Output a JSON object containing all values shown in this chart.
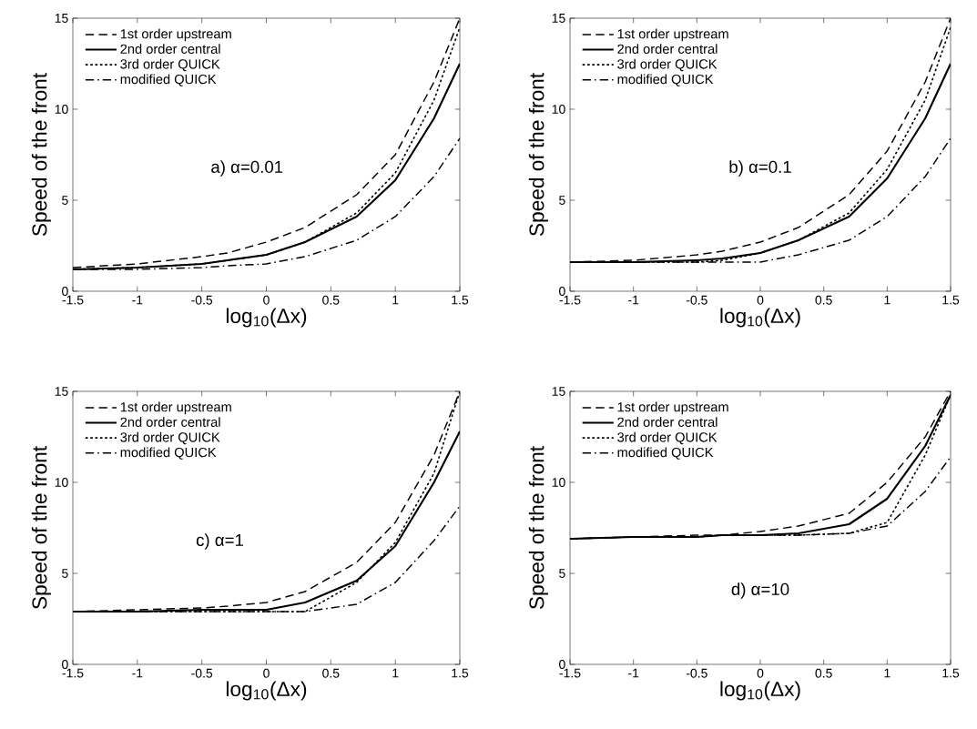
{
  "chart_data": [
    {
      "type": "line",
      "xlabel": "log$_{10}$(Δx)",
      "ylabel": "Speed of the front",
      "annotations": [
        "a) α=0.01"
      ],
      "xlim": [
        -1.5,
        1.5
      ],
      "ylim": [
        0,
        15
      ],
      "xticks": [
        -1.5,
        -1,
        -0.5,
        0,
        0.5,
        1,
        1.5
      ],
      "yticks": [
        0,
        5,
        10,
        15
      ],
      "legend": "top left",
      "x": [
        -1.5,
        -1,
        -0.5,
        -0.3,
        0,
        0.3,
        0.7,
        1,
        1.3,
        1.5
      ],
      "series": [
        {
          "name": "1st order upstream",
          "color": "#000000",
          "line_style": "dashed",
          "values": [
            1.3,
            1.5,
            1.9,
            2.1,
            2.7,
            3.5,
            5.3,
            7.5,
            11.5,
            15
          ]
        },
        {
          "name": "2nd order central",
          "color": "#000000",
          "line_style": "solid",
          "values": [
            1.2,
            1.3,
            1.5,
            1.7,
            2.0,
            2.7,
            4.1,
            6.1,
            9.5,
            12.5
          ]
        },
        {
          "name": "3rd order QUICK",
          "color": "#000000",
          "line_style": "dotted",
          "values": [
            1.2,
            1.3,
            1.5,
            1.7,
            2.0,
            2.7,
            4.3,
            6.5,
            10.5,
            14.5
          ]
        },
        {
          "name": "modified QUICK",
          "color": "#000000",
          "line_style": "dashdot",
          "values": [
            1.2,
            1.2,
            1.3,
            1.4,
            1.5,
            1.9,
            2.8,
            4.1,
            6.3,
            8.4
          ]
        }
      ]
    },
    {
      "type": "line",
      "xlabel": "log$_{10}$(Δx)",
      "ylabel": "Speed of the front",
      "annotations": [
        "b) α=0.1"
      ],
      "xlim": [
        -1.5,
        1.5
      ],
      "ylim": [
        0,
        15
      ],
      "xticks": [
        -1.5,
        -1,
        -0.5,
        0,
        0.5,
        1,
        1.5
      ],
      "yticks": [
        0,
        5,
        10,
        15
      ],
      "legend": "top left",
      "x": [
        -1.5,
        -1,
        -0.5,
        -0.3,
        0,
        0.3,
        0.7,
        1,
        1.3,
        1.5
      ],
      "series": [
        {
          "name": "1st order upstream",
          "color": "#000000",
          "line_style": "dashed",
          "values": [
            1.6,
            1.7,
            2.0,
            2.2,
            2.7,
            3.5,
            5.3,
            7.7,
            11.5,
            15
          ]
        },
        {
          "name": "2nd order central",
          "color": "#000000",
          "line_style": "solid",
          "values": [
            1.6,
            1.6,
            1.7,
            1.8,
            2.1,
            2.8,
            4.1,
            6.2,
            9.5,
            12.5
          ]
        },
        {
          "name": "3rd order QUICK",
          "color": "#000000",
          "line_style": "dotted",
          "values": [
            1.6,
            1.6,
            1.6,
            1.7,
            2.1,
            2.8,
            4.3,
            6.7,
            10.5,
            14.5
          ]
        },
        {
          "name": "modified QUICK",
          "color": "#000000",
          "line_style": "dashdot",
          "values": [
            1.6,
            1.6,
            1.6,
            1.6,
            1.6,
            2.0,
            2.8,
            4.1,
            6.3,
            8.4
          ]
        }
      ]
    },
    {
      "type": "line",
      "xlabel": "log$_{10}$(Δx)",
      "ylabel": "Speed of the front",
      "annotations": [
        "c) α=1"
      ],
      "xlim": [
        -1.5,
        1.5
      ],
      "ylim": [
        0,
        15
      ],
      "xticks": [
        -1.5,
        -1,
        -0.5,
        0,
        0.5,
        1,
        1.5
      ],
      "yticks": [
        0,
        5,
        10,
        15
      ],
      "legend": "top left",
      "x": [
        -1.5,
        -1,
        -0.5,
        -0.3,
        0,
        0.3,
        0.7,
        1,
        1.3,
        1.5
      ],
      "series": [
        {
          "name": "1st order upstream",
          "color": "#000000",
          "line_style": "dashed",
          "values": [
            2.9,
            3.0,
            3.1,
            3.2,
            3.4,
            4.0,
            5.6,
            7.8,
            11.5,
            15
          ]
        },
        {
          "name": "2nd order central",
          "color": "#000000",
          "line_style": "solid",
          "values": [
            2.9,
            2.9,
            3.0,
            3.0,
            3.0,
            3.4,
            4.6,
            6.5,
            10.0,
            12.8
          ]
        },
        {
          "name": "3rd order QUICK",
          "color": "#000000",
          "line_style": "dotted",
          "values": [
            2.9,
            2.9,
            2.9,
            2.9,
            2.9,
            2.9,
            4.5,
            6.7,
            10.5,
            15
          ]
        },
        {
          "name": "modified QUICK",
          "color": "#000000",
          "line_style": "dashdot",
          "values": [
            2.9,
            2.9,
            2.9,
            2.9,
            2.9,
            2.9,
            3.3,
            4.5,
            6.8,
            8.7
          ]
        }
      ]
    },
    {
      "type": "line",
      "xlabel": "log$_{10}$(Δx)",
      "ylabel": "Speed of the front",
      "annotations": [
        "d) α=10"
      ],
      "xlim": [
        -1.5,
        1.5
      ],
      "ylim": [
        0,
        15
      ],
      "xticks": [
        -1.5,
        -1,
        -0.5,
        0,
        0.5,
        1,
        1.5
      ],
      "yticks": [
        0,
        5,
        10,
        15
      ],
      "legend": "top left",
      "x": [
        -1.5,
        -1,
        -0.5,
        -0.3,
        0,
        0.3,
        0.7,
        1,
        1.3,
        1.5
      ],
      "series": [
        {
          "name": "1st order upstream",
          "color": "#000000",
          "line_style": "dashed",
          "values": [
            6.9,
            7.0,
            7.1,
            7.1,
            7.3,
            7.6,
            8.3,
            10.0,
            12.5,
            15
          ]
        },
        {
          "name": "2nd order central",
          "color": "#000000",
          "line_style": "solid",
          "values": [
            6.9,
            7.0,
            7.0,
            7.1,
            7.1,
            7.2,
            7.7,
            9.1,
            12.0,
            14.8
          ]
        },
        {
          "name": "3rd order QUICK",
          "color": "#000000",
          "line_style": "dotted",
          "values": [
            6.9,
            7.0,
            7.0,
            7.1,
            7.1,
            7.1,
            7.2,
            7.8,
            11.5,
            14.8
          ]
        },
        {
          "name": "modified QUICK",
          "color": "#000000",
          "line_style": "dashdot",
          "values": [
            6.9,
            7.0,
            7.0,
            7.1,
            7.1,
            7.1,
            7.2,
            7.6,
            9.5,
            11.4
          ]
        }
      ]
    }
  ]
}
